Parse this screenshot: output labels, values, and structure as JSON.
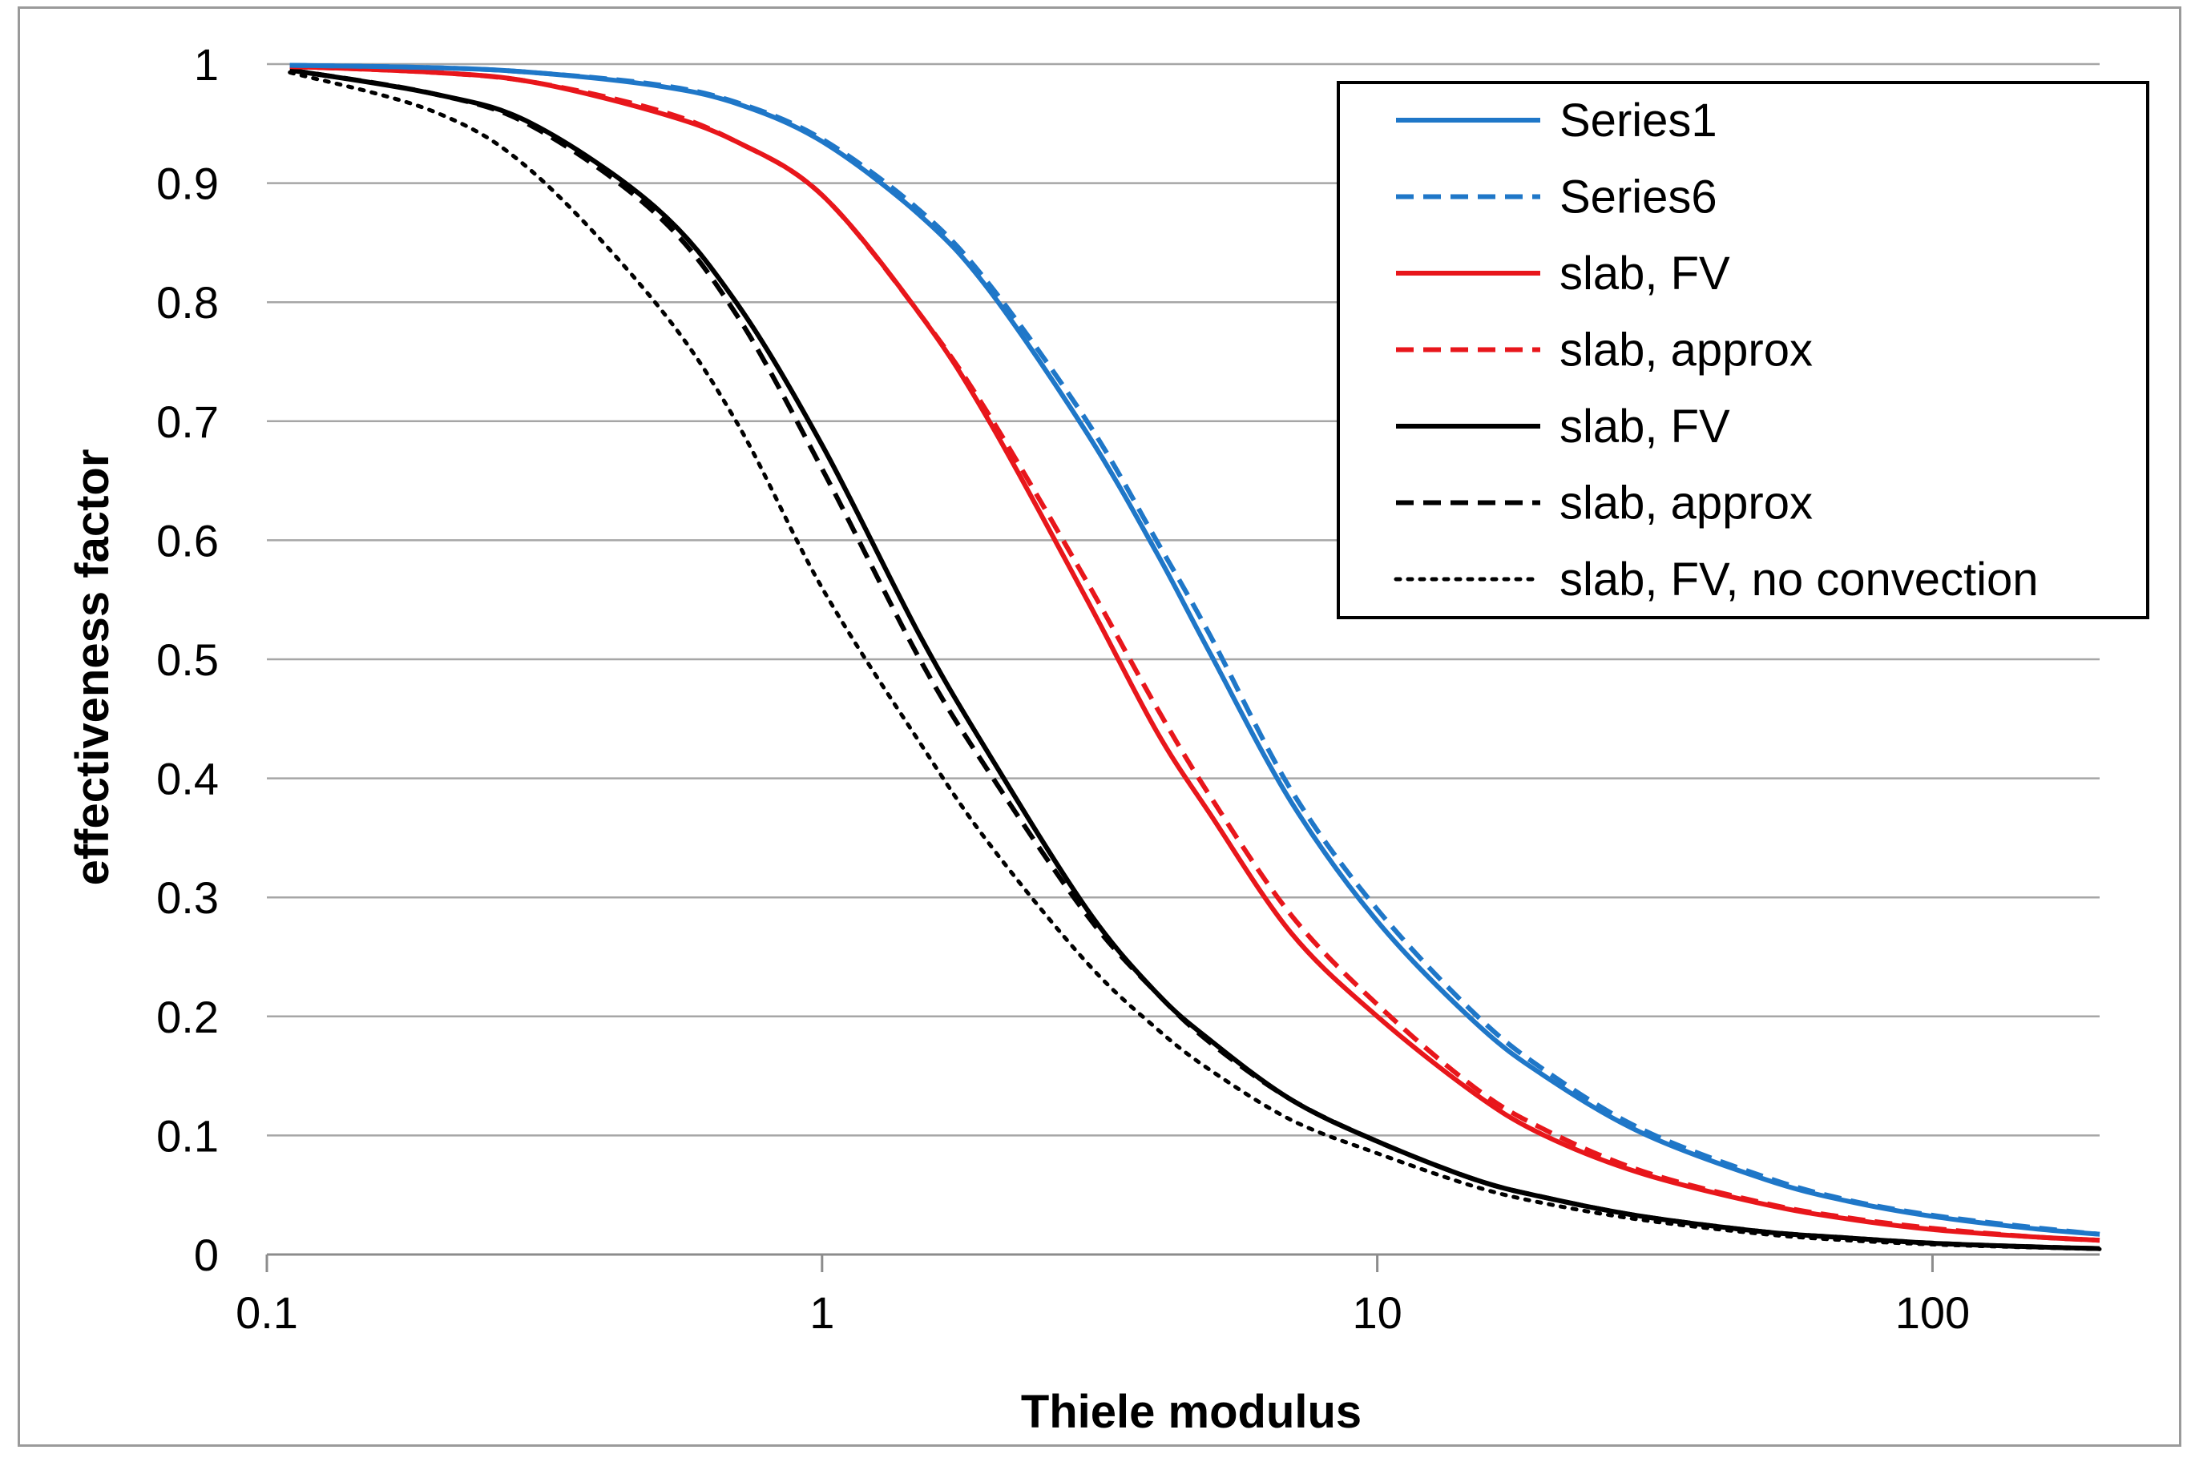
{
  "chart_data": {
    "type": "line",
    "title": "",
    "xlabel": "Thiele modulus",
    "ylabel": "effectiveness factor",
    "x_scale": "log",
    "xlim": [
      0.1,
      200
    ],
    "ylim": [
      0,
      1
    ],
    "x_ticks": [
      "0.1",
      "1",
      "10",
      "100"
    ],
    "y_ticks": [
      "0",
      "0.1",
      "0.2",
      "0.3",
      "0.4",
      "0.5",
      "0.6",
      "0.7",
      "0.8",
      "0.9",
      "1"
    ],
    "grid": "horizontal",
    "legend_position": "top-right",
    "x": [
      0.11,
      0.2,
      0.3,
      0.5,
      0.7,
      1,
      1.5,
      2,
      3,
      4,
      5,
      7,
      10,
      15,
      20,
      30,
      50,
      70,
      100,
      150,
      200
    ],
    "series": [
      {
        "name": "Series1",
        "color": "#1f77c8",
        "dash": "solid",
        "values": [
          0.999,
          0.997,
          0.993,
          0.982,
          0.967,
          0.935,
          0.873,
          0.81,
          0.69,
          0.59,
          0.505,
          0.38,
          0.28,
          0.195,
          0.15,
          0.102,
          0.063,
          0.045,
          0.032,
          0.022,
          0.017
        ]
      },
      {
        "name": "Series6",
        "color": "#1f77c8",
        "dash": "dashed",
        "values": [
          0.999,
          0.997,
          0.993,
          0.983,
          0.968,
          0.937,
          0.877,
          0.815,
          0.7,
          0.6,
          0.52,
          0.39,
          0.29,
          0.202,
          0.155,
          0.105,
          0.065,
          0.046,
          0.033,
          0.023,
          0.017
        ]
      },
      {
        "name": "slab, FV",
        "color": "#e8161b",
        "dash": "solid",
        "values": [
          0.998,
          0.993,
          0.985,
          0.96,
          0.935,
          0.89,
          0.79,
          0.7,
          0.55,
          0.44,
          0.37,
          0.27,
          0.2,
          0.135,
          0.1,
          0.068,
          0.042,
          0.03,
          0.021,
          0.015,
          0.012
        ]
      },
      {
        "name": "slab, approx",
        "color": "#e8161b",
        "dash": "dashed",
        "values": [
          0.998,
          0.993,
          0.985,
          0.962,
          0.935,
          0.89,
          0.79,
          0.705,
          0.565,
          0.46,
          0.385,
          0.285,
          0.21,
          0.14,
          0.105,
          0.07,
          0.043,
          0.031,
          0.022,
          0.015,
          0.012
        ]
      },
      {
        "name": "slab, FV",
        "color": "#000000",
        "dash": "solid",
        "values": [
          0.995,
          0.975,
          0.95,
          0.88,
          0.8,
          0.68,
          0.52,
          0.42,
          0.29,
          0.22,
          0.18,
          0.13,
          0.095,
          0.063,
          0.048,
          0.032,
          0.019,
          0.014,
          0.0095,
          0.0065,
          0.005
        ]
      },
      {
        "name": "slab, approx",
        "color": "#000000",
        "dash": "dashed",
        "values": [
          0.995,
          0.975,
          0.948,
          0.875,
          0.79,
          0.66,
          0.5,
          0.405,
          0.285,
          0.22,
          0.178,
          0.13,
          0.095,
          0.063,
          0.048,
          0.032,
          0.019,
          0.014,
          0.0095,
          0.0065,
          0.005
        ]
      },
      {
        "name": "slab, FV, no convection",
        "color": "#000000",
        "dash": "dotted",
        "values": [
          0.993,
          0.96,
          0.91,
          0.8,
          0.7,
          0.56,
          0.43,
          0.345,
          0.245,
          0.19,
          0.155,
          0.113,
          0.085,
          0.057,
          0.043,
          0.029,
          0.017,
          0.012,
          0.0085,
          0.006,
          0.0045
        ]
      }
    ]
  }
}
